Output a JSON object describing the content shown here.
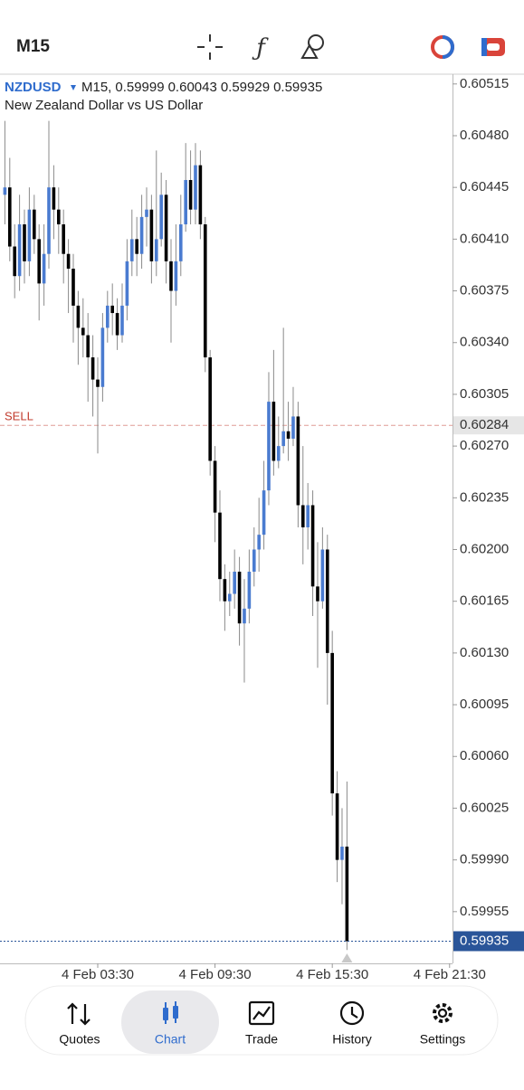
{
  "top_bar": {
    "timeframe": "M15"
  },
  "chart_data": {
    "type": "candlestick",
    "symbol": "NZDUSD",
    "header_timeframe": "M15,",
    "description": "New Zealand Dollar vs US Dollar",
    "up_color": "#4a7bd0",
    "down_color": "#000000",
    "wick_color": "#8a8a8a",
    "open": [
      0.6044,
      0.60445,
      0.60405,
      0.60385,
      0.6042,
      0.60395,
      0.6043,
      0.6041,
      0.6038,
      0.604,
      0.60445,
      0.6043,
      0.6042,
      0.604,
      0.6039,
      0.60365,
      0.6035,
      0.60345,
      0.6033,
      0.60315,
      0.6031,
      0.6035,
      0.60365,
      0.6036,
      0.60345,
      0.60365,
      0.60395,
      0.6041,
      0.604,
      0.60425,
      0.6043,
      0.60395,
      0.6041,
      0.6044,
      0.60395,
      0.60375,
      0.60395,
      0.6042,
      0.6045,
      0.6043,
      0.6046,
      0.6042,
      0.6033,
      0.6026,
      0.60225,
      0.6018,
      0.60165,
      0.6017,
      0.60185,
      0.6015,
      0.6016,
      0.60185,
      0.602,
      0.6021,
      0.6024,
      0.603,
      0.6026,
      0.6027,
      0.6028,
      0.60275,
      0.6029,
      0.6023,
      0.60215,
      0.6023,
      0.60175,
      0.60165,
      0.602,
      0.6013,
      0.60035,
      0.5999,
      0.59999
    ],
    "high": [
      0.6049,
      0.60465,
      0.6042,
      0.6044,
      0.6043,
      0.60445,
      0.6044,
      0.6042,
      0.6042,
      0.6049,
      0.6046,
      0.60445,
      0.6043,
      0.6041,
      0.604,
      0.60375,
      0.6037,
      0.6036,
      0.60345,
      0.6033,
      0.6036,
      0.60375,
      0.6038,
      0.6037,
      0.6038,
      0.6041,
      0.6043,
      0.60425,
      0.6044,
      0.60445,
      0.6044,
      0.6047,
      0.60455,
      0.6045,
      0.6041,
      0.6042,
      0.6044,
      0.60475,
      0.6047,
      0.60475,
      0.6047,
      0.60425,
      0.60335,
      0.6027,
      0.6024,
      0.6019,
      0.60185,
      0.602,
      0.60195,
      0.6018,
      0.602,
      0.60215,
      0.60235,
      0.6026,
      0.6032,
      0.60335,
      0.6029,
      0.6035,
      0.603,
      0.6031,
      0.603,
      0.6027,
      0.60245,
      0.6024,
      0.60205,
      0.60215,
      0.6021,
      0.60145,
      0.6005,
      0.60025,
      0.60043
    ],
    "low": [
      0.6042,
      0.60395,
      0.6037,
      0.60375,
      0.6038,
      0.60385,
      0.604,
      0.60355,
      0.60365,
      0.6039,
      0.6041,
      0.604,
      0.6038,
      0.6036,
      0.6034,
      0.60325,
      0.6033,
      0.603,
      0.6029,
      0.60265,
      0.603,
      0.6034,
      0.60345,
      0.60335,
      0.6034,
      0.60355,
      0.60385,
      0.60385,
      0.6039,
      0.60405,
      0.6038,
      0.60385,
      0.60405,
      0.6038,
      0.6034,
      0.60365,
      0.60385,
      0.60415,
      0.6042,
      0.6042,
      0.6041,
      0.6032,
      0.6025,
      0.60205,
      0.60165,
      0.60145,
      0.60155,
      0.6016,
      0.60135,
      0.6011,
      0.6015,
      0.60175,
      0.60185,
      0.602,
      0.6023,
      0.6025,
      0.60255,
      0.60265,
      0.6026,
      0.6027,
      0.60215,
      0.6019,
      0.602,
      0.60155,
      0.6012,
      0.6016,
      0.60095,
      0.6002,
      0.59975,
      0.5996,
      0.59929
    ],
    "close": [
      0.60445,
      0.60405,
      0.60385,
      0.6042,
      0.60395,
      0.6043,
      0.6041,
      0.6038,
      0.604,
      0.60445,
      0.6043,
      0.6042,
      0.604,
      0.6039,
      0.60365,
      0.6035,
      0.60345,
      0.6033,
      0.60315,
      0.6031,
      0.6035,
      0.60365,
      0.6036,
      0.60345,
      0.60365,
      0.60395,
      0.6041,
      0.604,
      0.60425,
      0.6043,
      0.60395,
      0.6041,
      0.6044,
      0.60395,
      0.60375,
      0.60395,
      0.6042,
      0.6045,
      0.6043,
      0.6046,
      0.6042,
      0.6033,
      0.6026,
      0.60225,
      0.6018,
      0.60165,
      0.6017,
      0.60185,
      0.6015,
      0.6016,
      0.60185,
      0.602,
      0.6021,
      0.6024,
      0.603,
      0.6026,
      0.6027,
      0.6028,
      0.60275,
      0.6029,
      0.6023,
      0.60215,
      0.6023,
      0.60175,
      0.60165,
      0.602,
      0.6013,
      0.60035,
      0.5999,
      0.59999,
      0.59935
    ],
    "xlim": [
      -1,
      91.6
    ],
    "xticks": [
      {
        "value": 19,
        "label": "4 Feb 03:30"
      },
      {
        "value": 43,
        "label": "4 Feb 09:30"
      },
      {
        "value": 67,
        "label": "4 Feb 15:30"
      },
      {
        "value": 91,
        "label": "4 Feb 21:30"
      }
    ],
    "ylim": [
      0.5992,
      0.60521
    ],
    "yticks": [
      0.60515,
      {
        "value": 0.6048,
        "label": "0.60480"
      },
      0.60445,
      {
        "value": 0.6041,
        "label": "0.60410"
      },
      0.60375,
      {
        "value": 0.6034,
        "label": "0.60340"
      },
      0.60305,
      {
        "value": 0.6027,
        "label": "0.60270"
      },
      0.60235,
      {
        "value": 0.602,
        "label": "0.60200"
      },
      0.60165,
      {
        "value": 0.6013,
        "label": "0.60130"
      },
      0.60095,
      {
        "value": 0.6006,
        "label": "0.60060"
      },
      0.60025,
      {
        "value": 0.5999,
        "label": "0.59990"
      },
      0.59955
    ],
    "sell_line": {
      "label": "SELL",
      "value": 0.60284,
      "color": "#c0392b"
    },
    "price_line_color": "#2a5599"
  },
  "tabs": [
    {
      "label": "Quotes"
    },
    {
      "label": "Chart",
      "active": true
    },
    {
      "label": "Trade"
    },
    {
      "label": "History"
    },
    {
      "label": "Settings"
    }
  ]
}
